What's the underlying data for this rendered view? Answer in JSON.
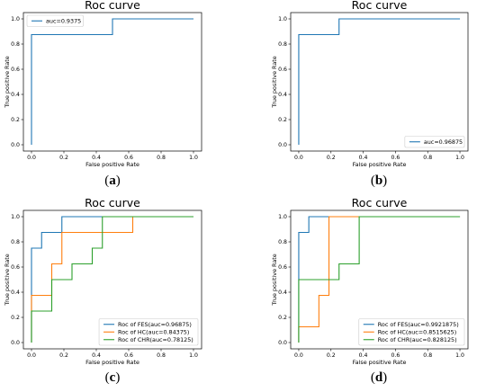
{
  "chart_data": [
    {
      "type": "line",
      "title": "Roc curve",
      "xlabel": "False positive Rate",
      "ylabel": "True positive Rate",
      "xlim": [
        0,
        1
      ],
      "ylim": [
        0,
        1
      ],
      "xticks": [
        "0.0",
        "0.2",
        "0.4",
        "0.6",
        "0.8",
        "1.0"
      ],
      "yticks": [
        "0.0",
        "0.2",
        "0.4",
        "0.6",
        "0.8",
        "1.0"
      ],
      "legend_position": "upper-left",
      "caption": "(a)",
      "series": [
        {
          "name": "auc=0.9375",
          "color": "#1f77b4",
          "x": [
            0,
            0,
            0.5,
            0.5,
            1.0
          ],
          "y": [
            0,
            0.875,
            0.875,
            1.0,
            1.0
          ]
        }
      ]
    },
    {
      "type": "line",
      "title": "Roc curve",
      "xlabel": "False positive Rate",
      "ylabel": "True positive Rate",
      "xlim": [
        0,
        1
      ],
      "ylim": [
        0,
        1
      ],
      "xticks": [
        "0.0",
        "0.2",
        "0.4",
        "0.6",
        "0.8",
        "1.0"
      ],
      "yticks": [
        "0.0",
        "0.2",
        "0.4",
        "0.6",
        "0.8",
        "1.0"
      ],
      "legend_position": "lower-right",
      "caption": "(b)",
      "series": [
        {
          "name": "auc=0.96875",
          "color": "#1f77b4",
          "x": [
            0,
            0,
            0.25,
            0.25,
            1.0
          ],
          "y": [
            0,
            0.875,
            0.875,
            1.0,
            1.0
          ]
        }
      ]
    },
    {
      "type": "line",
      "title": "Roc curve",
      "xlabel": "False positive Rate",
      "ylabel": "True positive Rate",
      "xlim": [
        0,
        1
      ],
      "ylim": [
        0,
        1
      ],
      "xticks": [
        "0.0",
        "0.2",
        "0.4",
        "0.6",
        "0.8",
        "1.0"
      ],
      "yticks": [
        "0.0",
        "0.2",
        "0.4",
        "0.6",
        "0.8",
        "1.0"
      ],
      "legend_position": "lower-right",
      "caption": "(c)",
      "series": [
        {
          "name": "Roc of FES(auc=0.96875)",
          "color": "#1f77b4",
          "x": [
            0,
            0,
            0.0625,
            0.0625,
            0.1875,
            0.1875,
            1.0
          ],
          "y": [
            0,
            0.75,
            0.75,
            0.875,
            0.875,
            1.0,
            1.0
          ]
        },
        {
          "name": "Roc of HC(auc=0.84375)",
          "color": "#ff7f0e",
          "x": [
            0,
            0,
            0.125,
            0.125,
            0.1875,
            0.1875,
            0.625,
            0.625,
            1.0
          ],
          "y": [
            0,
            0.375,
            0.375,
            0.625,
            0.625,
            0.875,
            0.875,
            1.0,
            1.0
          ]
        },
        {
          "name": "Roc of CHR(auc=0.78125)",
          "color": "#2ca02c",
          "x": [
            0,
            0,
            0.125,
            0.125,
            0.25,
            0.25,
            0.375,
            0.375,
            0.4375,
            0.4375,
            1.0
          ],
          "y": [
            0,
            0.25,
            0.25,
            0.5,
            0.5,
            0.625,
            0.625,
            0.75,
            0.75,
            1.0,
            1.0
          ]
        }
      ]
    },
    {
      "type": "line",
      "title": "Roc curve",
      "xlabel": "False positive Rate",
      "ylabel": "True positive Rate",
      "xlim": [
        0,
        1
      ],
      "ylim": [
        0,
        1
      ],
      "xticks": [
        "0.0",
        "0.2",
        "0.4",
        "0.6",
        "0.8",
        "1.0"
      ],
      "yticks": [
        "0.0",
        "0.2",
        "0.4",
        "0.6",
        "0.8",
        "1.0"
      ],
      "legend_position": "lower-right",
      "caption": "(d)",
      "series": [
        {
          "name": "Roc of FES(auc=0.9921875)",
          "color": "#1f77b4",
          "x": [
            0,
            0,
            0.0625,
            0.0625,
            1.0
          ],
          "y": [
            0,
            0.875,
            0.875,
            1.0,
            1.0
          ]
        },
        {
          "name": "Roc of HC(auc=0.8515625)",
          "color": "#ff7f0e",
          "x": [
            0,
            0,
            0.125,
            0.125,
            0.1875,
            0.1875,
            1.0
          ],
          "y": [
            0,
            0.125,
            0.125,
            0.375,
            0.375,
            1.0,
            1.0
          ]
        },
        {
          "name": "Roc of CHR(auc=0.828125)",
          "color": "#2ca02c",
          "x": [
            0,
            0,
            0.25,
            0.25,
            0.375,
            0.375,
            1.0
          ],
          "y": [
            0,
            0.5,
            0.5,
            0.625,
            0.625,
            1.0,
            1.0
          ]
        }
      ]
    }
  ]
}
